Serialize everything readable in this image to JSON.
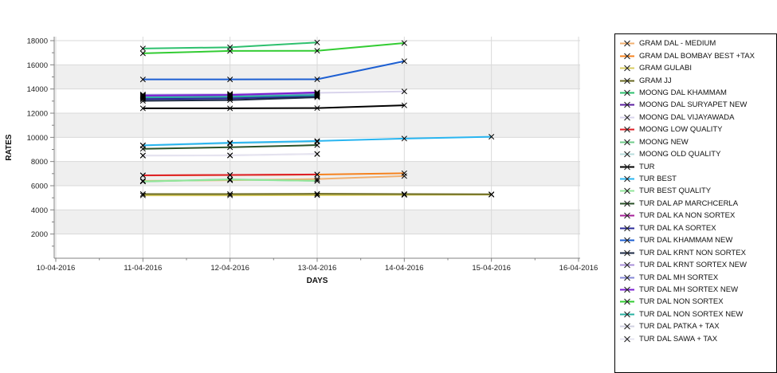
{
  "chart_data": {
    "type": "line",
    "title": "",
    "x_axis": {
      "label": "DAYS",
      "tick_labels": [
        "10-04-2016",
        "11-04-2016",
        "12-04-2016",
        "13-04-2016",
        "14-04-2016",
        "15-04-2016",
        "16-04-2016"
      ]
    },
    "y_axis": {
      "label": "RATES",
      "min": 0,
      "max": 18000,
      "tick_step": 2000,
      "tick_labels": [
        "2000",
        "4000",
        "6000",
        "8000",
        "10000",
        "12000",
        "14000",
        "16000",
        "18000"
      ]
    },
    "legend_position": "right",
    "grid": true,
    "plot_bands_every": 2000,
    "marker_style": "black-x",
    "series": [
      {
        "name": "GRAM DAL - MEDIUM",
        "color": "#f2b070",
        "x": [
          1,
          2,
          3,
          4
        ],
        "y": [
          6400,
          6450,
          6550,
          6800
        ]
      },
      {
        "name": "GRAM DAL BOMBAY BEST +TAX",
        "color": "#f5821f",
        "x": [
          1,
          2,
          3,
          4
        ],
        "y": [
          6850,
          6880,
          6920,
          7030
        ]
      },
      {
        "name": "GRAM GULABI",
        "color": "#d8cc60",
        "x": [
          1,
          2,
          3,
          4,
          5
        ],
        "y": [
          5200,
          5200,
          5220,
          5240,
          5260
        ]
      },
      {
        "name": "GRAM JJ",
        "color": "#6a6a22",
        "x": [
          1,
          2,
          3,
          4,
          5
        ],
        "y": [
          5310,
          5310,
          5330,
          5310,
          5290
        ]
      },
      {
        "name": "MOONG DAL KHAMMAM",
        "color": "#2ec06e",
        "x": [
          1,
          2,
          3
        ],
        "y": [
          17350,
          17450,
          17850
        ]
      },
      {
        "name": "MOONG DAL SURYAPET NEW",
        "color": "#5b1fa0",
        "x": [
          1,
          2,
          3
        ],
        "y": [
          13350,
          13400,
          13550
        ]
      },
      {
        "name": "MOONG DAL VIJAYAWADA",
        "color": "#d9d4ec",
        "x": [
          1,
          2,
          3,
          4
        ],
        "y": [
          13550,
          13600,
          13680,
          13800
        ]
      },
      {
        "name": "MOONG LOW QUALITY",
        "color": "#dd1f26",
        "x": [
          1,
          2,
          3
        ],
        "y": [
          6860,
          6890,
          6930
        ]
      },
      {
        "name": "MOONG NEW",
        "color": "#70cc8b",
        "x": [
          1,
          2,
          3
        ],
        "y": [
          6350,
          6520,
          6400
        ]
      },
      {
        "name": "MOONG OLD QUALITY",
        "color": "#b8dedd",
        "x": [
          1,
          2,
          3
        ],
        "y": [
          9320,
          9500,
          9640
        ]
      },
      {
        "name": "TUR",
        "color": "#000000",
        "x": [
          1,
          2,
          3,
          4
        ],
        "y": [
          12400,
          12400,
          12420,
          12650
        ]
      },
      {
        "name": "TUR BEST",
        "color": "#29b5f0",
        "x": [
          1,
          2,
          3,
          4,
          5
        ],
        "y": [
          9340,
          9550,
          9700,
          9900,
          10050
        ]
      },
      {
        "name": "TUR BEST QUALITY",
        "color": "#90e69a",
        "x": [
          1,
          2,
          3
        ],
        "y": [
          6360,
          6500,
          6410
        ]
      },
      {
        "name": "TUR DAL AP MARCHCERLA",
        "color": "#2a5128",
        "x": [
          1,
          2,
          3
        ],
        "y": [
          9050,
          9180,
          9360
        ]
      },
      {
        "name": "TUR DAL KA NON SORTEX",
        "color": "#a62198",
        "x": [
          1,
          2,
          3
        ],
        "y": [
          13230,
          13280,
          13430
        ]
      },
      {
        "name": "TUR DAL KA SORTEX",
        "color": "#2b2b9a",
        "x": [
          1,
          2,
          3
        ],
        "y": [
          13160,
          13220,
          13390
        ]
      },
      {
        "name": "TUR DAL KHAMMAM NEW",
        "color": "#1d5fd2",
        "x": [
          1,
          2,
          3,
          4
        ],
        "y": [
          14790,
          14790,
          14800,
          16300
        ]
      },
      {
        "name": "TUR DAL KRNT NON SORTEX",
        "color": "#1c2a45",
        "x": [
          1,
          2,
          3
        ],
        "y": [
          13020,
          13080,
          13310
        ]
      },
      {
        "name": "TUR DAL KRNT SORTEX NEW",
        "color": "#a98fd9",
        "x": [
          1,
          2,
          3
        ],
        "y": [
          13420,
          13480,
          13630
        ]
      },
      {
        "name": "TUR DAL MH SORTEX",
        "color": "#8487d6",
        "x": [
          1,
          2,
          3
        ],
        "y": [
          13490,
          13520,
          13660
        ]
      },
      {
        "name": "TUR DAL MH SORTEX NEW",
        "color": "#7b1fd1",
        "x": [
          1,
          2,
          3
        ],
        "y": [
          13460,
          13510,
          13720
        ]
      },
      {
        "name": "TUR DAL NON SORTEX",
        "color": "#33cc33",
        "x": [
          1,
          2,
          3,
          4
        ],
        "y": [
          16950,
          17150,
          17160,
          17800
        ]
      },
      {
        "name": "TUR DAL NON SORTEX NEW",
        "color": "#28b2a2",
        "x": [
          1,
          2,
          3
        ],
        "y": [
          13300,
          13360,
          13500
        ]
      },
      {
        "name": "TUR DAL PATKA + TAX",
        "color": "#d2d2e2",
        "x": [
          1,
          2,
          3
        ],
        "y": [
          8500,
          8510,
          8630
        ]
      },
      {
        "name": "TUR DAL SAWA + TAX",
        "color": "#e6e4f0",
        "x": [
          1,
          2,
          3
        ],
        "y": [
          8490,
          8500,
          8620
        ]
      }
    ]
  }
}
